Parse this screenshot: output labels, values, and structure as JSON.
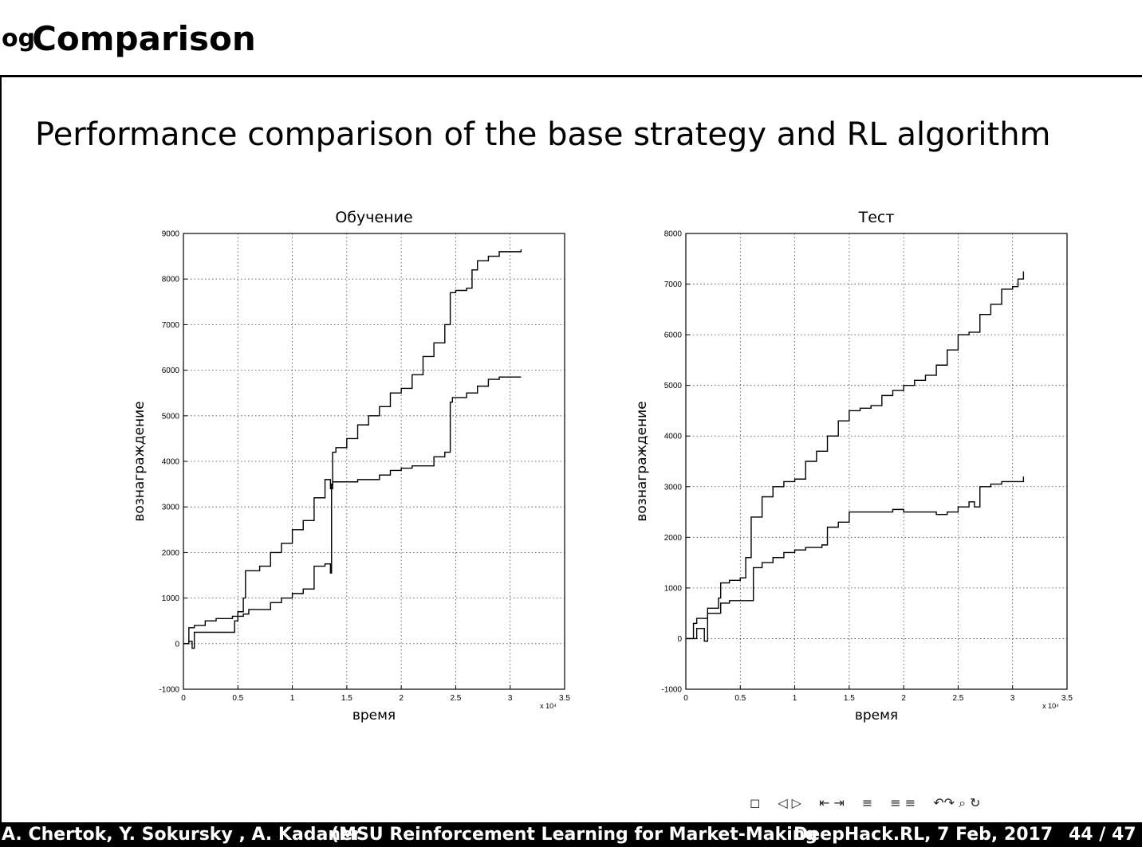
{
  "slide": {
    "frame_prefix": "og",
    "frame_title": "Comparison",
    "heading": "Performance comparison of the base strategy and RL algorithm"
  },
  "navigation": {
    "icons": [
      "frame-nav-icon",
      "section-nav-icon",
      "subsection-nav-icon",
      "slide-nav-icon",
      "appendix-nav-icon",
      "search-icon"
    ],
    "glyphs": [
      "◻",
      "◁ ▷",
      "⇤ ⇥",
      "≡",
      "≡ ≡",
      "↶↷ ⌕ ↻"
    ]
  },
  "footer": {
    "authors": "A. Chertok, Y. Sokursky , A. Kadaner",
    "title": "(MSU Reinforcement Learning for Market-Making",
    "event": "DeepHack.RL, 7 Feb, 2017",
    "page": "44 / 47"
  },
  "chart_data": [
    {
      "type": "line",
      "title": "Обучение",
      "xlabel": "время",
      "ylabel": "вознаграждение",
      "x_multiplier": "x 10⁴",
      "xlim": [
        0,
        3.5
      ],
      "ylim": [
        -1000,
        9000
      ],
      "xticks": [
        0,
        0.5,
        1,
        1.5,
        2,
        2.5,
        3,
        3.5
      ],
      "xtick_labels": [
        "0",
        "0.5",
        "1",
        "1.5",
        "2",
        "2.5",
        "3",
        "3.5"
      ],
      "yticks": [
        -1000,
        0,
        1000,
        2000,
        3000,
        4000,
        5000,
        6000,
        7000,
        8000,
        9000
      ],
      "ytick_labels": [
        "-1000",
        "0",
        "1000",
        "2000",
        "3000",
        "4000",
        "5000",
        "6000",
        "7000",
        "8000",
        "9000"
      ],
      "grid": true,
      "series": [
        {
          "x": [
            0,
            0.05,
            0.1,
            0.2,
            0.3,
            0.45,
            0.5,
            0.55,
            0.57,
            0.6,
            0.7,
            0.8,
            0.9,
            1.0,
            1.1,
            1.2,
            1.3,
            1.35,
            1.37,
            1.4,
            1.5,
            1.6,
            1.7,
            1.8,
            1.9,
            2.0,
            2.1,
            2.2,
            2.3,
            2.4,
            2.45,
            2.5,
            2.6,
            2.65,
            2.7,
            2.8,
            2.9,
            3.0,
            3.1
          ],
          "y": [
            0,
            350,
            400,
            500,
            550,
            600,
            700,
            1000,
            1600,
            1600,
            1700,
            2000,
            2200,
            2500,
            2700,
            3200,
            3600,
            3400,
            4200,
            4300,
            4500,
            4800,
            5000,
            5200,
            5500,
            5600,
            5900,
            6300,
            6600,
            7000,
            7700,
            7750,
            7800,
            8200,
            8400,
            8500,
            8600,
            8600,
            8650
          ]
        },
        {
          "x": [
            0,
            0.05,
            0.08,
            0.1,
            0.12,
            0.2,
            0.3,
            0.45,
            0.47,
            0.5,
            0.55,
            0.6,
            0.8,
            0.9,
            1.0,
            1.1,
            1.2,
            1.3,
            1.35,
            1.36,
            1.37,
            1.4,
            1.5,
            1.6,
            1.8,
            1.9,
            2.0,
            2.1,
            2.3,
            2.4,
            2.45,
            2.47,
            2.5,
            2.6,
            2.7,
            2.8,
            2.9,
            3.0,
            3.1
          ],
          "y": [
            0,
            50,
            -100,
            250,
            250,
            250,
            250,
            250,
            500,
            600,
            650,
            750,
            900,
            1000,
            1100,
            1200,
            1700,
            1750,
            1550,
            3500,
            3550,
            3550,
            3550,
            3600,
            3700,
            3800,
            3850,
            3900,
            4100,
            4200,
            5300,
            5400,
            5400,
            5500,
            5650,
            5800,
            5850,
            5850,
            5850
          ]
        }
      ]
    },
    {
      "type": "line",
      "title": "Тест",
      "xlabel": "время",
      "ylabel": "вознаграждение",
      "x_multiplier": "x 10⁴",
      "xlim": [
        0,
        3.5
      ],
      "ylim": [
        -1000,
        8000
      ],
      "xticks": [
        0,
        0.5,
        1,
        1.5,
        2,
        2.5,
        3,
        3.5
      ],
      "xtick_labels": [
        "0",
        "0.5",
        "1",
        "1.5",
        "2",
        "2.5",
        "3",
        "3.5"
      ],
      "yticks": [
        -1000,
        0,
        1000,
        2000,
        3000,
        4000,
        5000,
        6000,
        7000,
        8000
      ],
      "ytick_labels": [
        "-1000",
        "0",
        "1000",
        "2000",
        "3000",
        "4000",
        "5000",
        "6000",
        "7000",
        "8000"
      ],
      "grid": true,
      "series": [
        {
          "x": [
            0,
            0.07,
            0.1,
            0.2,
            0.3,
            0.32,
            0.4,
            0.5,
            0.55,
            0.6,
            0.7,
            0.8,
            0.9,
            1.0,
            1.1,
            1.2,
            1.3,
            1.4,
            1.5,
            1.6,
            1.7,
            1.8,
            1.9,
            2.0,
            2.1,
            2.2,
            2.3,
            2.4,
            2.5,
            2.6,
            2.7,
            2.8,
            2.9,
            3.0,
            3.05,
            3.1
          ],
          "y": [
            0,
            300,
            400,
            600,
            800,
            1100,
            1150,
            1200,
            1600,
            2400,
            2800,
            3000,
            3100,
            3150,
            3500,
            3700,
            4000,
            4300,
            4500,
            4550,
            4600,
            4800,
            4900,
            5000,
            5100,
            5200,
            5400,
            5700,
            6000,
            6050,
            6400,
            6600,
            6900,
            6950,
            7100,
            7250
          ]
        },
        {
          "x": [
            0,
            0.07,
            0.1,
            0.15,
            0.17,
            0.2,
            0.3,
            0.32,
            0.4,
            0.5,
            0.6,
            0.62,
            0.7,
            0.8,
            0.9,
            1.0,
            1.1,
            1.2,
            1.25,
            1.3,
            1.4,
            1.5,
            1.6,
            1.7,
            1.8,
            1.9,
            2.0,
            2.1,
            2.2,
            2.3,
            2.4,
            2.5,
            2.6,
            2.65,
            2.7,
            2.8,
            2.9,
            3.0,
            3.1
          ],
          "y": [
            0,
            0,
            200,
            200,
            -50,
            500,
            500,
            700,
            750,
            750,
            750,
            1400,
            1500,
            1600,
            1700,
            1750,
            1800,
            1800,
            1850,
            2200,
            2300,
            2500,
            2500,
            2500,
            2500,
            2550,
            2500,
            2500,
            2500,
            2450,
            2500,
            2600,
            2700,
            2600,
            3000,
            3050,
            3100,
            3100,
            3200
          ]
        }
      ]
    }
  ]
}
